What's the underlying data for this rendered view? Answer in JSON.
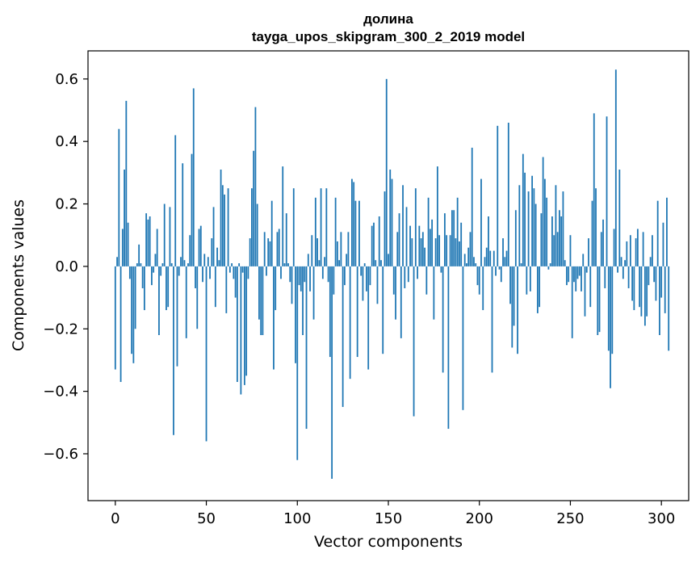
{
  "chart_data": {
    "type": "bar",
    "title": "долина",
    "subtitle": "tayga_upos_skipgram_300_2_2019 model",
    "xlabel": "Vector components",
    "ylabel": "Components values",
    "xlim": [
      -15,
      315
    ],
    "ylim": [
      -0.75,
      0.69
    ],
    "xticks": [
      0,
      50,
      100,
      150,
      200,
      250,
      300
    ],
    "yticks": [
      -0.6,
      -0.4,
      -0.2,
      0.0,
      0.2,
      0.4,
      0.6
    ],
    "xtick_labels": [
      "0",
      "50",
      "100",
      "150",
      "200",
      "250",
      "300"
    ],
    "ytick_labels": [
      "−0.6",
      "−0.4",
      "−0.2",
      "0.0",
      "0.2",
      "0.4",
      "0.6"
    ],
    "bar_color": "#1f77b4",
    "values": [
      -0.33,
      0.03,
      0.44,
      -0.37,
      0.12,
      0.31,
      0.53,
      0.14,
      -0.04,
      -0.28,
      -0.31,
      -0.2,
      0.01,
      0.07,
      0.01,
      -0.07,
      -0.14,
      0.17,
      0.15,
      0.16,
      -0.06,
      -0.02,
      0.04,
      0.12,
      -0.22,
      -0.03,
      0.01,
      0.2,
      -0.14,
      -0.13,
      0.19,
      0.01,
      -0.54,
      0.42,
      -0.32,
      -0.03,
      0.03,
      0.33,
      0.02,
      -0.23,
      0.01,
      0.1,
      0.36,
      0.57,
      -0.07,
      -0.2,
      0.12,
      0.13,
      -0.05,
      0.04,
      -0.56,
      0.03,
      -0.04,
      0.09,
      0.19,
      -0.13,
      0.06,
      0.02,
      0.31,
      0.26,
      0.23,
      -0.15,
      0.25,
      -0.02,
      0.01,
      -0.04,
      -0.1,
      -0.37,
      0.01,
      -0.41,
      -0.02,
      -0.38,
      -0.35,
      -0.04,
      0.09,
      0.25,
      0.37,
      0.51,
      0.2,
      -0.17,
      -0.22,
      -0.22,
      0.11,
      -0.03,
      0.09,
      0.08,
      0.21,
      -0.33,
      -0.14,
      0.11,
      0.12,
      -0.04,
      0.32,
      0.01,
      0.17,
      0.01,
      -0.05,
      -0.12,
      0.25,
      -0.31,
      -0.62,
      -0.06,
      -0.08,
      -0.22,
      -0.05,
      -0.52,
      0.04,
      -0.08,
      0.1,
      -0.17,
      0.22,
      0.09,
      0.02,
      0.25,
      -0.04,
      0.03,
      0.25,
      -0.05,
      -0.29,
      -0.68,
      -0.09,
      0.22,
      0.08,
      0.02,
      0.11,
      -0.45,
      -0.06,
      0.04,
      0.11,
      -0.36,
      0.28,
      0.27,
      0.21,
      -0.29,
      0.21,
      -0.03,
      -0.11,
      0.01,
      -0.08,
      -0.33,
      -0.06,
      0.13,
      0.14,
      0.02,
      -0.12,
      0.16,
      0.02,
      -0.28,
      0.24,
      0.6,
      0.04,
      0.31,
      0.28,
      -0.09,
      -0.17,
      0.11,
      0.17,
      -0.23,
      0.26,
      -0.07,
      0.19,
      -0.05,
      0.13,
      0.09,
      -0.48,
      0.25,
      -0.04,
      0.13,
      0.09,
      0.11,
      0.06,
      -0.09,
      0.22,
      0.12,
      0.15,
      -0.17,
      0.09,
      0.32,
      0.1,
      -0.02,
      -0.34,
      0.17,
      0.1,
      -0.52,
      0.1,
      0.18,
      0.18,
      0.09,
      0.22,
      0.08,
      0.14,
      -0.46,
      0.04,
      0.01,
      0.06,
      0.11,
      0.38,
      0.03,
      0.01,
      -0.06,
      -0.09,
      0.28,
      -0.14,
      0.03,
      0.06,
      0.16,
      0.05,
      -0.34,
      0.05,
      -0.03,
      0.45,
      -0.01,
      -0.05,
      0.09,
      0.03,
      0.05,
      0.46,
      -0.12,
      -0.26,
      -0.19,
      0.18,
      -0.28,
      0.26,
      0.01,
      0.36,
      0.3,
      -0.09,
      0.24,
      -0.08,
      0.29,
      0.25,
      0.2,
      -0.15,
      -0.13,
      0.17,
      0.35,
      0.28,
      0.22,
      -0.01,
      0.01,
      0.16,
      0.1,
      0.26,
      0.11,
      0.18,
      0.16,
      0.24,
      0.02,
      -0.06,
      -0.05,
      0.1,
      -0.23,
      -0.05,
      -0.08,
      -0.04,
      -0.03,
      -0.08,
      0.04,
      -0.16,
      -0.02,
      0.09,
      -0.13,
      0.21,
      0.49,
      0.25,
      -0.22,
      -0.21,
      0.11,
      0.15,
      -0.07,
      0.48,
      -0.27,
      -0.39,
      -0.28,
      0.12,
      0.63,
      -0.02,
      0.31,
      0.03,
      -0.04,
      0.02,
      0.08,
      -0.07,
      0.1,
      -0.11,
      -0.14,
      0.09,
      0.12,
      -0.13,
      -0.16,
      0.11,
      -0.19,
      -0.16,
      -0.06,
      0.03,
      0.1,
      -0.05,
      -0.11,
      0.21,
      -0.22,
      -0.1,
      0.14,
      -0.15,
      0.22,
      -0.27
    ]
  }
}
